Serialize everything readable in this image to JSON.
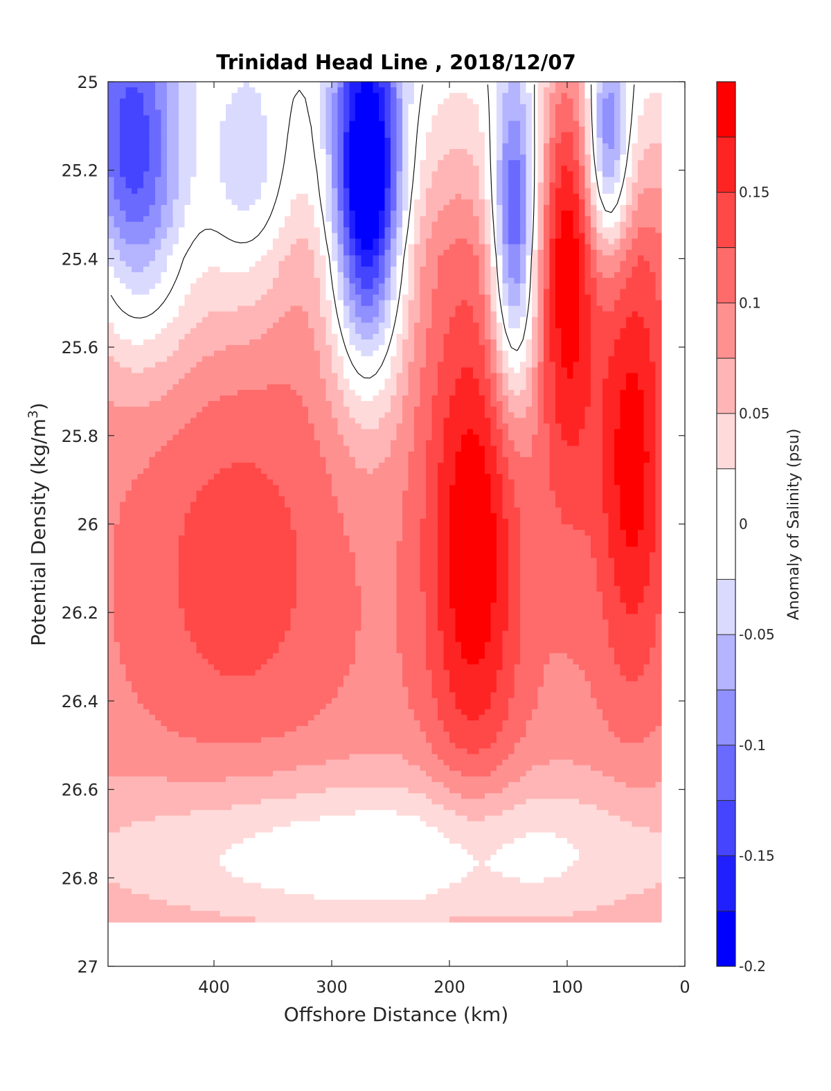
{
  "chart_data": {
    "type": "heatmap",
    "title": "Trinidad Head Line , 2018/12/07",
    "xlabel": "Offshore Distance (km)",
    "ylabel_main": "Potential Density (kg/m",
    "ylabel_sup": "3",
    "ylabel_close": ")",
    "colorbar_label": "Anomaly of Salinity (psu)",
    "xlim": [
      490,
      0
    ],
    "ylim": [
      25.0,
      27.0
    ],
    "y_reversed": true,
    "xticks": [
      400,
      300,
      200,
      100,
      0
    ],
    "xtick_labels": [
      "400",
      "300",
      "200",
      "100",
      "0"
    ],
    "yticks": [
      25.0,
      25.2,
      25.4,
      25.6,
      25.8,
      26.0,
      26.2,
      26.4,
      26.6,
      26.8,
      27.0
    ],
    "ytick_labels": [
      "25",
      "25.2",
      "25.4",
      "25.6",
      "25.8",
      "26",
      "26.2",
      "26.4",
      "26.6",
      "26.8",
      "27"
    ],
    "colorbar": {
      "range": [
        -0.2,
        0.2
      ],
      "ticks": [
        -0.2,
        -0.15,
        -0.1,
        -0.05,
        0,
        0.05,
        0.1,
        0.15
      ],
      "tick_labels": [
        "-0.2",
        "-0.15",
        "-0.1",
        "-0.05",
        "0",
        "0.05",
        "0.1",
        "0.15"
      ],
      "levels": [
        {
          "from": -0.2,
          "to": -0.175,
          "color": "#0000ff"
        },
        {
          "from": -0.175,
          "to": -0.15,
          "color": "#2020ff"
        },
        {
          "from": -0.15,
          "to": -0.125,
          "color": "#4545ff"
        },
        {
          "from": -0.125,
          "to": -0.1,
          "color": "#6a6aff"
        },
        {
          "from": -0.1,
          "to": -0.075,
          "color": "#9090ff"
        },
        {
          "from": -0.075,
          "to": -0.05,
          "color": "#b4b4ff"
        },
        {
          "from": -0.05,
          "to": -0.025,
          "color": "#dadaff"
        },
        {
          "from": -0.025,
          "to": 0.025,
          "color": "#ffffff"
        },
        {
          "from": 0.025,
          "to": 0.05,
          "color": "#ffdada"
        },
        {
          "from": 0.05,
          "to": 0.075,
          "color": "#ffb5b5"
        },
        {
          "from": 0.075,
          "to": 0.1,
          "color": "#ff9090"
        },
        {
          "from": 0.1,
          "to": 0.125,
          "color": "#ff6a6a"
        },
        {
          "from": 0.125,
          "to": 0.15,
          "color": "#ff4848"
        },
        {
          "from": 0.15,
          "to": 0.175,
          "color": "#ff2424"
        },
        {
          "from": 0.175,
          "to": 0.2,
          "color": "#ff0000"
        }
      ]
    },
    "field_x_range": [
      20,
      490
    ],
    "field_y_range": [
      25.0,
      26.9
    ],
    "anomaly_features": [
      {
        "kind": "background",
        "x": 250,
        "sigma": 26.9,
        "value": 0.09
      },
      {
        "kind": "blob",
        "x": 270,
        "sigma": 25.25,
        "sx": 22,
        "sy": 0.28,
        "value": -0.29
      },
      {
        "kind": "blob",
        "x": 145,
        "sigma": 25.35,
        "sx": 14,
        "sy": 0.25,
        "value": -0.2
      },
      {
        "kind": "blob",
        "x": 65,
        "sigma": 25.15,
        "sx": 13,
        "sy": 0.18,
        "value": -0.14
      },
      {
        "kind": "blob",
        "x": 470,
        "sigma": 25.15,
        "sx": 30,
        "sy": 0.25,
        "value": -0.16
      },
      {
        "kind": "blob",
        "x": 370,
        "sigma": 25.25,
        "sx": 28,
        "sy": 0.2,
        "value": -0.09
      },
      {
        "kind": "blob",
        "x": 180,
        "sigma": 26.05,
        "sx": 28,
        "sy": 0.38,
        "value": 0.11
      },
      {
        "kind": "blob",
        "x": 100,
        "sigma": 25.35,
        "sx": 16,
        "sy": 0.4,
        "value": 0.11
      },
      {
        "kind": "blob",
        "x": 45,
        "sigma": 25.85,
        "sx": 22,
        "sy": 0.35,
        "value": 0.1
      },
      {
        "kind": "blob",
        "x": 380,
        "sigma": 26.1,
        "sx": 60,
        "sy": 0.3,
        "value": 0.05
      },
      {
        "kind": "blob",
        "x": 250,
        "sigma": 26.75,
        "sx": 200,
        "sy": 0.13,
        "value": -0.09
      },
      {
        "kind": "blob",
        "x": 450,
        "sigma": 25.4,
        "sx": 40,
        "sy": 0.2,
        "value": -0.06
      }
    ]
  }
}
